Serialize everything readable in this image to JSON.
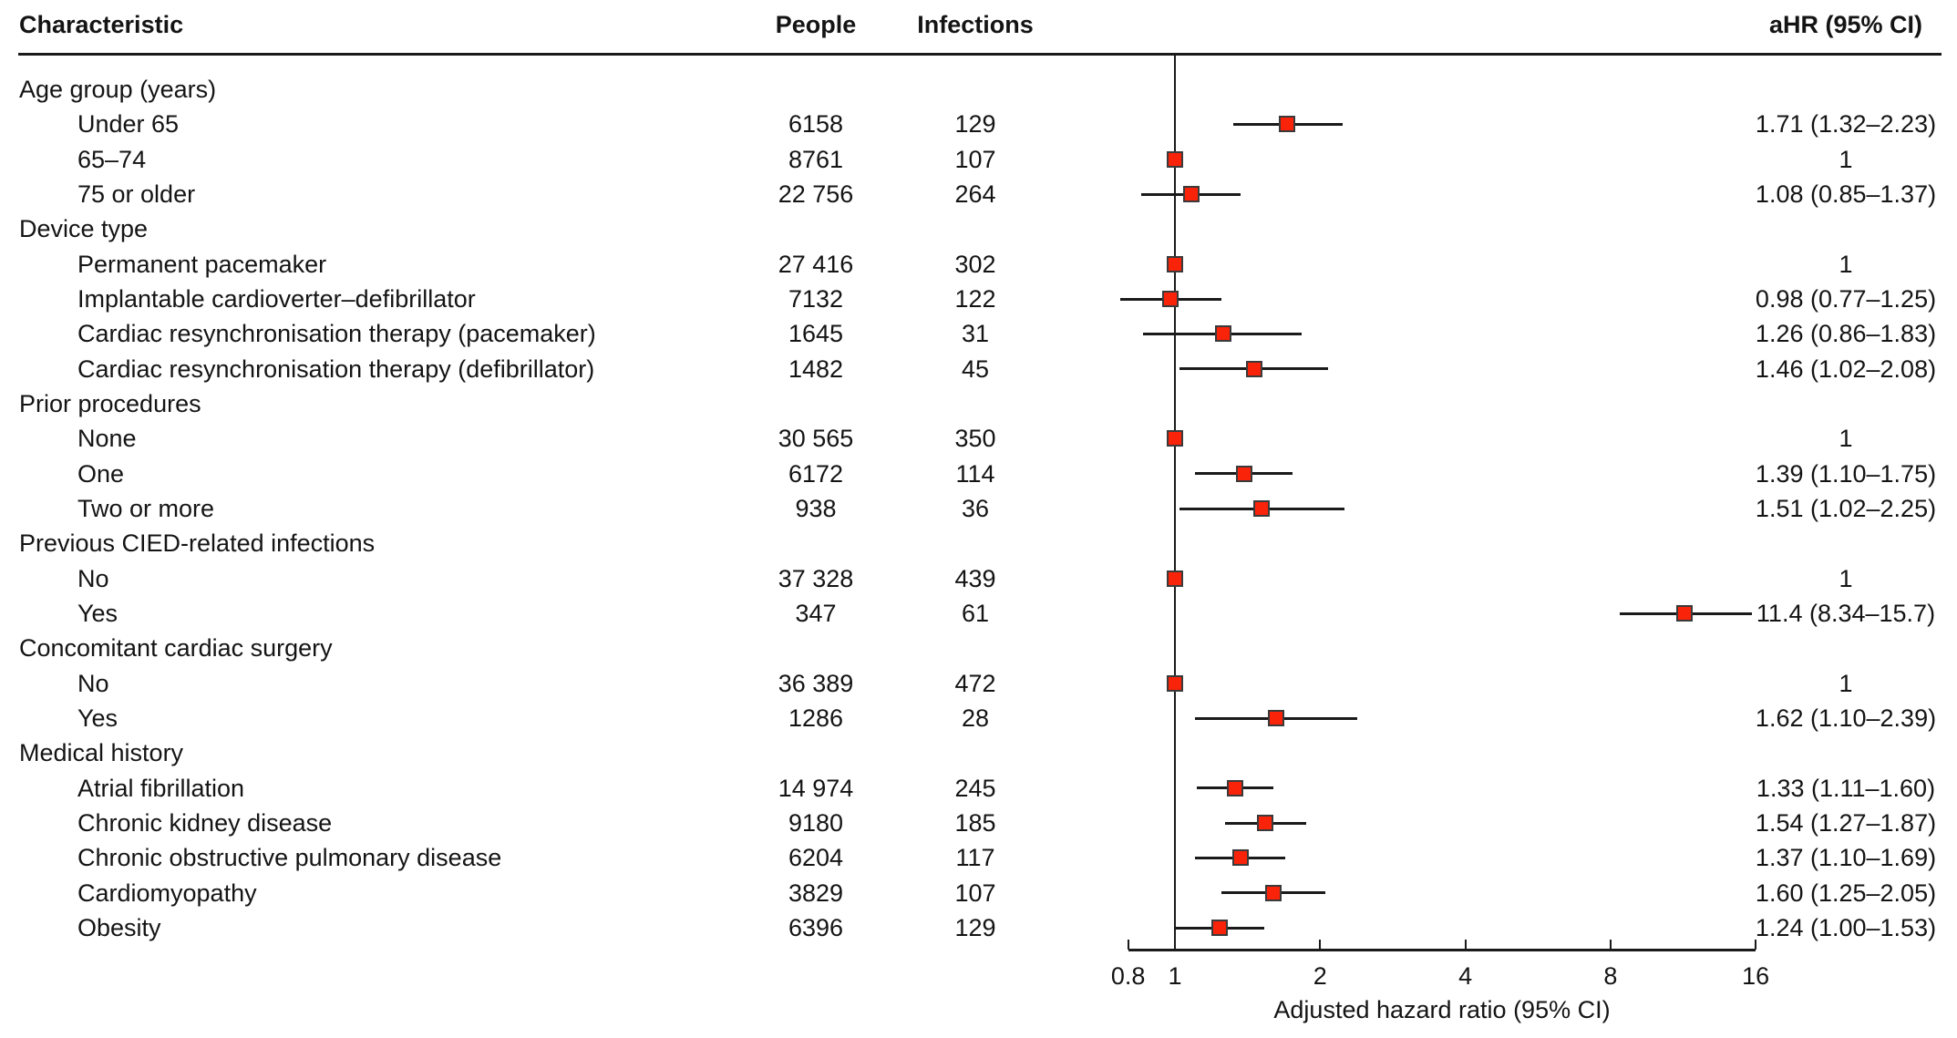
{
  "header": {
    "characteristic": "Characteristic",
    "people": "People",
    "infections": "Infections",
    "ahr": "aHR (95% CI)"
  },
  "axis": {
    "label": "Adjusted hazard ratio (95% CI)",
    "tick_labels": [
      "0.8",
      "1",
      "2",
      "4",
      "8",
      "16"
    ],
    "tick_values": [
      0.8,
      1,
      2,
      4,
      8,
      16
    ],
    "range": [
      0.8,
      16
    ],
    "scale": "log2",
    "reference_value": 1
  },
  "style": {
    "marker_fill": "#f9230a",
    "marker_border": "#3a3a3a",
    "line_color": "#1a1a1a",
    "text_color": "#141414"
  },
  "chart_data": {
    "type": "forest",
    "columns": [
      "Characteristic",
      "People",
      "Infections",
      "aHR (95% CI)"
    ],
    "xlabel": "Adjusted hazard ratio (95% CI)",
    "x_ticks": [
      0.8,
      1,
      2,
      4,
      8,
      16
    ],
    "x_range": [
      0.8,
      16
    ],
    "x_scale": "log2",
    "reference_line": 1,
    "rows": [
      {
        "label": "Age group (years)",
        "group": true
      },
      {
        "label": "Under 65",
        "people": "6158",
        "infections": "129",
        "est": 1.71,
        "lo": 1.32,
        "hi": 2.23,
        "ahr_text": "1.71 (1.32–2.23)"
      },
      {
        "label": "65–74",
        "people": "8761",
        "infections": "107",
        "est": 1,
        "lo": null,
        "hi": null,
        "ahr_text": "1"
      },
      {
        "label": "75 or older",
        "people": "22 756",
        "infections": "264",
        "est": 1.08,
        "lo": 0.85,
        "hi": 1.37,
        "ahr_text": "1.08 (0.85–1.37)"
      },
      {
        "label": "Device type",
        "group": true
      },
      {
        "label": "Permanent pacemaker",
        "people": "27 416",
        "infections": "302",
        "est": 1,
        "lo": null,
        "hi": null,
        "ahr_text": "1"
      },
      {
        "label": "Implantable cardioverter–defibrillator",
        "people": "7132",
        "infections": "122",
        "est": 0.98,
        "lo": 0.77,
        "hi": 1.25,
        "ahr_text": "0.98 (0.77–1.25)"
      },
      {
        "label": "Cardiac resynchronisation therapy (pacemaker)",
        "people": "1645",
        "infections": "31",
        "est": 1.26,
        "lo": 0.86,
        "hi": 1.83,
        "ahr_text": "1.26 (0.86–1.83)"
      },
      {
        "label": "Cardiac resynchronisation therapy (defibrillator)",
        "people": "1482",
        "infections": "45",
        "est": 1.46,
        "lo": 1.02,
        "hi": 2.08,
        "ahr_text": "1.46 (1.02–2.08)"
      },
      {
        "label": "Prior procedures",
        "group": true
      },
      {
        "label": "None",
        "people": "30 565",
        "infections": "350",
        "est": 1,
        "lo": null,
        "hi": null,
        "ahr_text": "1"
      },
      {
        "label": "One",
        "people": "6172",
        "infections": "114",
        "est": 1.39,
        "lo": 1.1,
        "hi": 1.75,
        "ahr_text": "1.39 (1.10–1.75)"
      },
      {
        "label": "Two or more",
        "people": "938",
        "infections": "36",
        "est": 1.51,
        "lo": 1.02,
        "hi": 2.25,
        "ahr_text": "1.51 (1.02–2.25)"
      },
      {
        "label": "Previous CIED-related infections",
        "group": true
      },
      {
        "label": "No",
        "people": "37 328",
        "infections": "439",
        "est": 1,
        "lo": null,
        "hi": null,
        "ahr_text": "1"
      },
      {
        "label": "Yes",
        "people": "347",
        "infections": "61",
        "est": 11.4,
        "lo": 8.34,
        "hi": 15.7,
        "ahr_text": "11.4 (8.34–15.7)"
      },
      {
        "label": "Concomitant cardiac surgery",
        "group": true
      },
      {
        "label": "No",
        "people": "36 389",
        "infections": "472",
        "est": 1,
        "lo": null,
        "hi": null,
        "ahr_text": "1"
      },
      {
        "label": "Yes",
        "people": "1286",
        "infections": "28",
        "est": 1.62,
        "lo": 1.1,
        "hi": 2.39,
        "ahr_text": "1.62 (1.10–2.39)"
      },
      {
        "label": "Medical history",
        "group": true
      },
      {
        "label": "Atrial fibrillation",
        "people": "14 974",
        "infections": "245",
        "est": 1.33,
        "lo": 1.11,
        "hi": 1.6,
        "ahr_text": "1.33 (1.11–1.60)"
      },
      {
        "label": "Chronic kidney disease",
        "people": "9180",
        "infections": "185",
        "est": 1.54,
        "lo": 1.27,
        "hi": 1.87,
        "ahr_text": "1.54 (1.27–1.87)"
      },
      {
        "label": "Chronic obstructive pulmonary disease",
        "people": "6204",
        "infections": "117",
        "est": 1.37,
        "lo": 1.1,
        "hi": 1.69,
        "ahr_text": "1.37 (1.10–1.69)"
      },
      {
        "label": "Cardiomyopathy",
        "people": "3829",
        "infections": "107",
        "est": 1.6,
        "lo": 1.25,
        "hi": 2.05,
        "ahr_text": "1.60 (1.25–2.05)"
      },
      {
        "label": "Obesity",
        "people": "6396",
        "infections": "129",
        "est": 1.24,
        "lo": 1.0,
        "hi": 1.53,
        "ahr_text": "1.24 (1.00–1.53)"
      }
    ]
  }
}
